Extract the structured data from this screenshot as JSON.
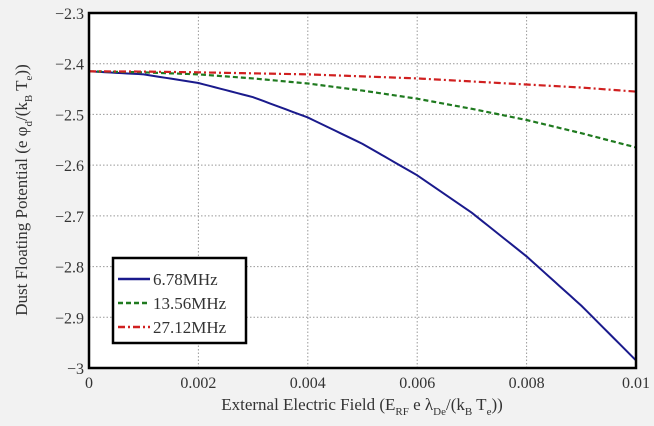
{
  "chart_data": {
    "type": "line",
    "xlabel": "External Electric Field (E_RF e λ_De/(k_B T_e))",
    "xlabel_parts": {
      "pre": "External Electric Field (E",
      "sub1": "RF",
      "mid": " e λ",
      "sub2": "De",
      "mid2": "/(k",
      "sub3": "B",
      "mid3": " T",
      "sub4": "e",
      "post": "))"
    },
    "ylabel": "Dust Floating Potential (e φ_d/(k_B T_e))",
    "ylabel_parts": {
      "pre": "Dust Floating Potential (e φ",
      "sub1": "d",
      "mid": "/(k",
      "sub2": "B",
      "mid2": " T",
      "sub3": "e",
      "post": "))"
    },
    "xlim": [
      0,
      0.01
    ],
    "ylim": [
      -3,
      -2.3
    ],
    "xticks": [
      "0",
      "0.002",
      "0.004",
      "0.006",
      "0.008",
      "0.01"
    ],
    "yticks": [
      "−2.3",
      "−2.4",
      "−2.5",
      "−2.6",
      "−2.7",
      "−2.8",
      "−2.9",
      "−3"
    ],
    "grid": true,
    "legend_position": "bottom-left",
    "x": [
      0,
      0.001,
      0.002,
      0.003,
      0.004,
      0.005,
      0.006,
      0.007,
      0.008,
      0.009,
      0.01
    ],
    "series": [
      {
        "name": "6.78MHz",
        "color": "#1a1a8c",
        "style": "solid",
        "values": [
          -2.415,
          -2.421,
          -2.438,
          -2.466,
          -2.506,
          -2.558,
          -2.62,
          -2.694,
          -2.78,
          -2.877,
          -2.985
        ]
      },
      {
        "name": "13.56MHz",
        "color": "#1f7a1f",
        "style": "dashed",
        "values": [
          -2.415,
          -2.417,
          -2.421,
          -2.429,
          -2.439,
          -2.453,
          -2.469,
          -2.489,
          -2.511,
          -2.537,
          -2.565
        ]
      },
      {
        "name": "27.12MHz",
        "color": "#d02020",
        "style": "dashdot",
        "values": [
          -2.415,
          -2.4155,
          -2.417,
          -2.419,
          -2.421,
          -2.425,
          -2.429,
          -2.435,
          -2.441,
          -2.447,
          -2.455
        ]
      }
    ]
  }
}
